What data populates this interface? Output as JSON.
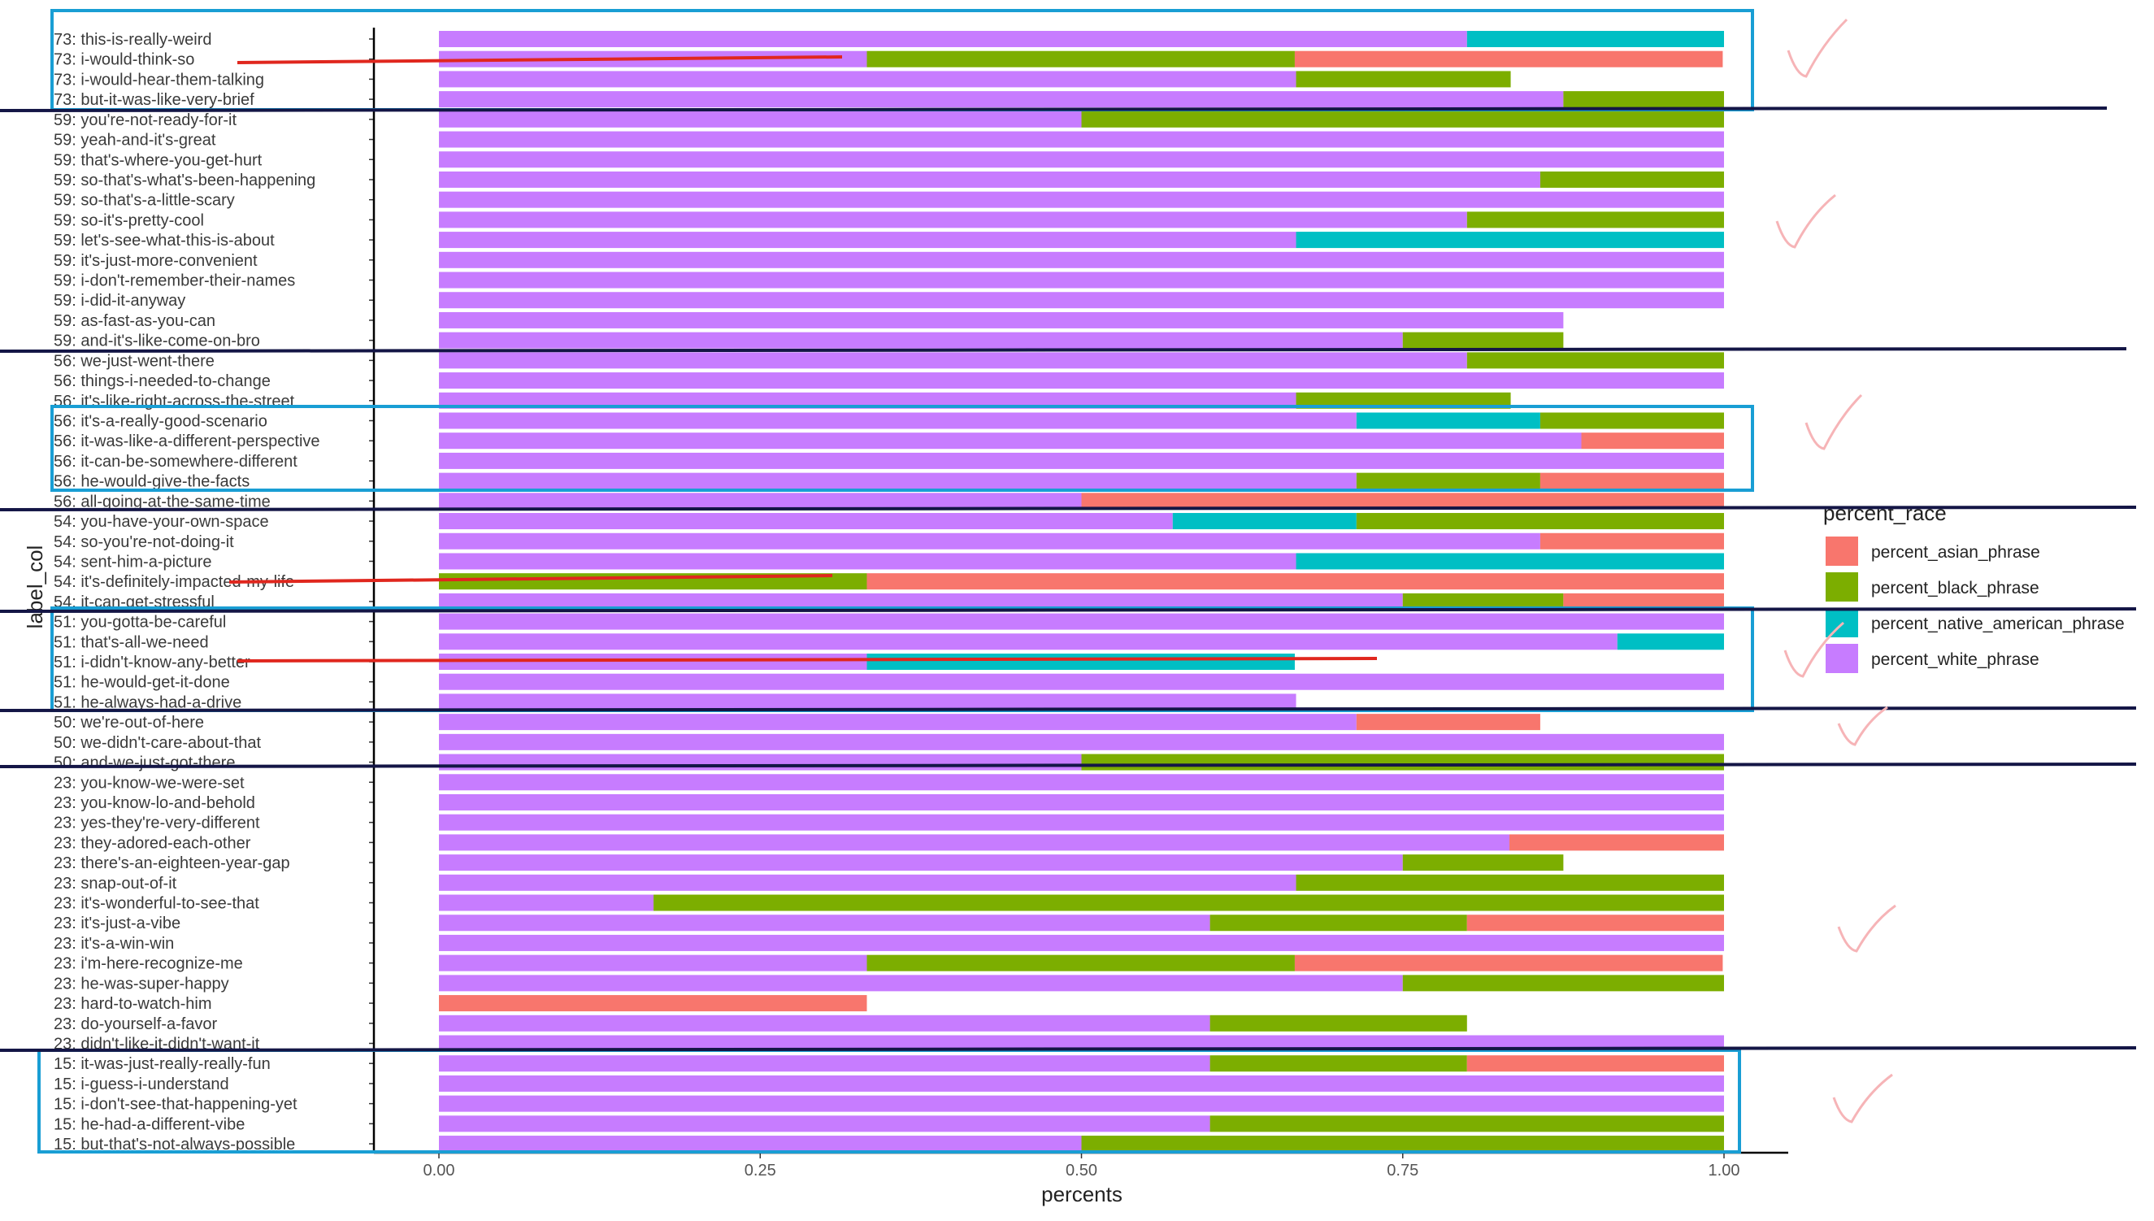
{
  "chart_data": {
    "type": "bar",
    "orientation": "horizontal",
    "stacked": true,
    "xlabel": "percents",
    "ylabel": "label_col",
    "xlim": [
      0,
      1
    ],
    "xticks": [
      "0.00",
      "0.25",
      "0.50",
      "0.75",
      "1.00"
    ],
    "xtick_values": [
      0,
      0.25,
      0.5,
      0.75,
      1.0
    ],
    "grid": false,
    "legend": {
      "title": "percent_race",
      "placement": "right",
      "entries": [
        {
          "name": "percent_asian_phrase",
          "color": "#F8766D"
        },
        {
          "name": "percent_black_phrase",
          "color": "#7CAE00"
        },
        {
          "name": "percent_native_american_phrase",
          "color": "#00BFC4"
        },
        {
          "name": "percent_white_phrase",
          "color": "#C77CFF"
        }
      ]
    },
    "stack_order": [
      "percent_white_phrase",
      "percent_native_american_phrase",
      "percent_black_phrase",
      "percent_asian_phrase"
    ],
    "categories": [
      "73: this-is-really-weird",
      "73: i-would-think-so",
      "73: i-would-hear-them-talking",
      "73: but-it-was-like-very-brief",
      "59: you're-not-ready-for-it",
      "59: yeah-and-it's-great",
      "59: that's-where-you-get-hurt",
      "59: so-that's-what's-been-happening",
      "59: so-that's-a-little-scary",
      "59: so-it's-pretty-cool",
      "59: let's-see-what-this-is-about",
      "59: it's-just-more-convenient",
      "59: i-don't-remember-their-names",
      "59: i-did-it-anyway",
      "59: as-fast-as-you-can",
      "59: and-it's-like-come-on-bro",
      "56: we-just-went-there",
      "56: things-i-needed-to-change",
      "56: it's-like-right-across-the-street",
      "56: it's-a-really-good-scenario",
      "56: it-was-like-a-different-perspective",
      "56: it-can-be-somewhere-different",
      "56: he-would-give-the-facts",
      "56: all-going-at-the-same-time",
      "54: you-have-your-own-space",
      "54: so-you're-not-doing-it",
      "54: sent-him-a-picture",
      "54: it's-definitely-impacted-my-life",
      "54: it-can-get-stressful",
      "51: you-gotta-be-careful",
      "51: that's-all-we-need",
      "51: i-didn't-know-any-better",
      "51: he-would-get-it-done",
      "51: he-always-had-a-drive",
      "50: we're-out-of-here",
      "50: we-didn't-care-about-that",
      "50: and-we-just-got-there",
      "23: you-know-we-were-set",
      "23: you-know-lo-and-behold",
      "23: yes-they're-very-different",
      "23: they-adored-each-other",
      "23: there's-an-eighteen-year-gap",
      "23: snap-out-of-it",
      "23: it's-wonderful-to-see-that",
      "23: it's-just-a-vibe",
      "23: it's-a-win-win",
      "23: i'm-here-recognize-me",
      "23: he-was-super-happy",
      "23: hard-to-watch-him",
      "23: do-yourself-a-favor",
      "23: didn't-like-it-didn't-want-it",
      "15: it-was-just-really-really-fun",
      "15: i-guess-i-understand",
      "15: i-don't-see-that-happening-yet",
      "15: he-had-a-different-vibe",
      "15: but-that's-not-always-possible"
    ],
    "series": [
      {
        "name": "percent_white_phrase",
        "color": "#C77CFF",
        "values": [
          0.8,
          0.333,
          0.667,
          0.875,
          0.5,
          1,
          1,
          0.857,
          1,
          0.8,
          0.667,
          1,
          1,
          1,
          0.875,
          0.75,
          0.8,
          1,
          0.667,
          0.714,
          0.889,
          1,
          0.714,
          0.5,
          0.571,
          0.857,
          0.667,
          0,
          0.75,
          1,
          0.917,
          0.333,
          1,
          0.667,
          0.714,
          1,
          0.5,
          1,
          1,
          1,
          0.833,
          0.75,
          0.667,
          0.167,
          0.6,
          1,
          0.333,
          0.75,
          0,
          0.6,
          1,
          0.6,
          1,
          1,
          0.6,
          0.5
        ]
      },
      {
        "name": "percent_native_american_phrase",
        "color": "#00BFC4",
        "values": [
          0.2,
          0,
          0,
          0,
          0,
          0,
          0,
          0,
          0,
          0,
          0.333,
          0,
          0,
          0,
          0,
          0,
          0,
          0,
          0,
          0.143,
          0,
          0,
          0,
          0,
          0.143,
          0,
          0.333,
          0,
          0,
          0,
          0.083,
          0.333,
          0,
          0,
          0,
          0,
          0,
          0,
          0,
          0,
          0,
          0,
          0,
          0,
          0,
          0,
          0,
          0,
          0,
          0,
          0,
          0,
          0,
          0,
          0,
          0
        ]
      },
      {
        "name": "percent_black_phrase",
        "color": "#7CAE00",
        "values": [
          0,
          0.333,
          0.167,
          0.125,
          0.5,
          0,
          0,
          0.143,
          0,
          0.2,
          0,
          0,
          0,
          0,
          0,
          0.125,
          0.2,
          0,
          0.167,
          0.143,
          0,
          0,
          0.143,
          0,
          0.286,
          0,
          0,
          0.333,
          0.125,
          0,
          0,
          0,
          0,
          0,
          0,
          0,
          0.5,
          0,
          0,
          0,
          0,
          0.125,
          0.333,
          0.833,
          0.2,
          0,
          0.333,
          0.25,
          0,
          0.2,
          0,
          0.2,
          0,
          0,
          0.4,
          0.5
        ]
      },
      {
        "name": "percent_asian_phrase",
        "color": "#F8766D",
        "values": [
          0,
          0.333,
          0,
          0,
          0,
          0,
          0,
          0,
          0,
          0,
          0,
          0,
          0,
          0,
          0,
          0,
          0,
          0,
          0,
          0,
          0.111,
          0,
          0.143,
          0.5,
          0,
          0.143,
          0,
          0.667,
          0.125,
          0,
          0,
          0,
          0,
          0,
          0.143,
          0,
          0,
          0,
          0,
          0,
          0.167,
          0,
          0,
          0,
          0.2,
          0,
          0.333,
          0,
          0.333,
          0,
          0,
          0.2,
          0,
          0,
          0,
          0
        ]
      }
    ]
  }
}
